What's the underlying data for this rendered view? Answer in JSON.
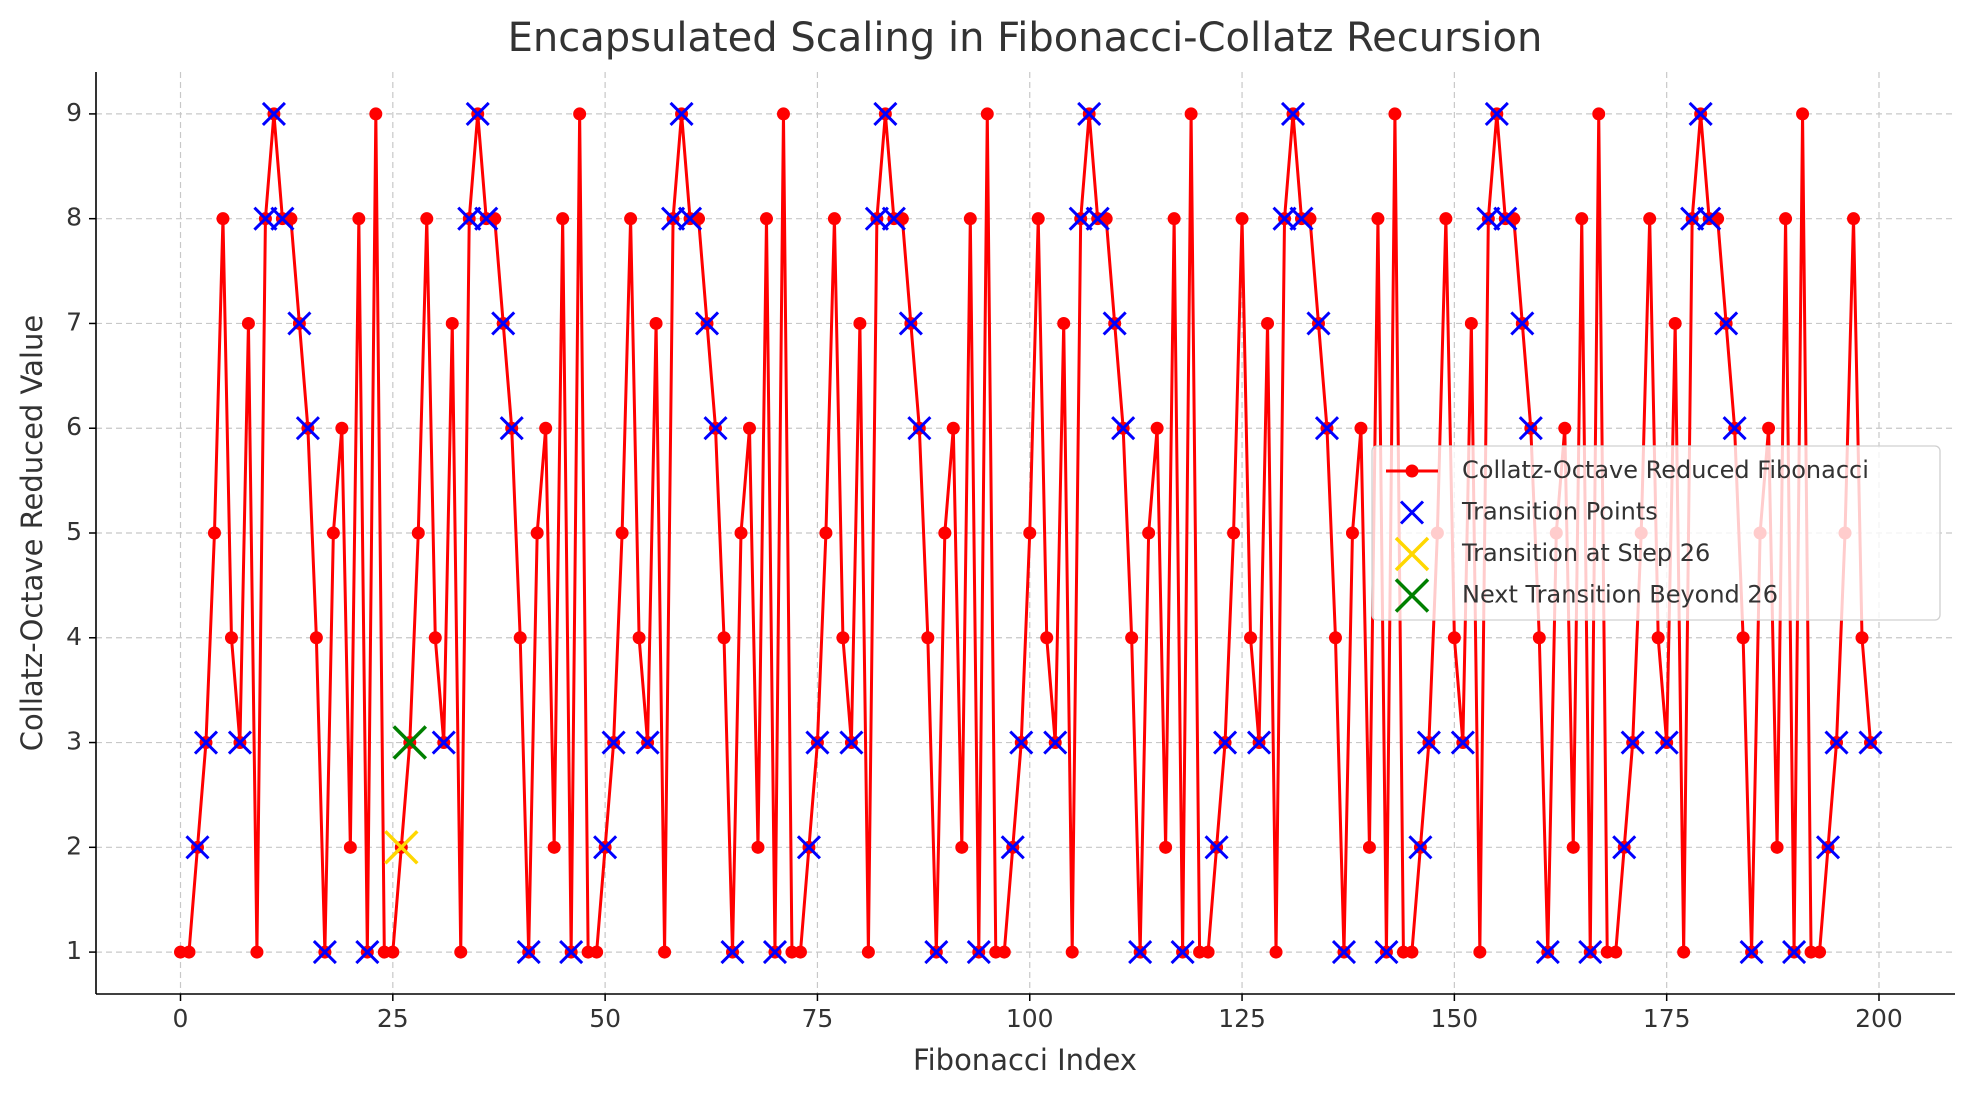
{
  "chart_data": {
    "type": "line",
    "title": "Encapsulated Scaling in Fibonacci-Collatz Recursion",
    "xlabel": "Fibonacci Index",
    "ylabel": "Collatz-Octave Reduced Value",
    "xlim": [
      -9.95,
      208.95
    ],
    "ylim": [
      0.6,
      9.4
    ],
    "xticks": [
      0,
      25,
      50,
      75,
      100,
      125,
      150,
      175,
      200
    ],
    "yticks": [
      1,
      2,
      3,
      4,
      5,
      6,
      7,
      8,
      9
    ],
    "grid": true,
    "legend": "center right",
    "series": [
      {
        "name": "Collatz-Octave Reduced Fibonacci",
        "color": "#ff0000",
        "kind": "line-marker",
        "x": [
          0,
          1,
          2,
          3,
          4,
          5,
          6,
          7,
          8,
          9,
          10,
          11,
          12,
          13,
          14,
          15,
          16,
          17,
          18,
          19,
          20,
          21,
          22,
          23,
          24,
          25,
          26,
          27,
          28,
          29,
          30,
          31,
          32,
          33,
          34,
          35,
          36,
          37,
          38,
          39,
          40,
          41,
          42,
          43,
          44,
          45,
          46,
          47,
          48,
          49,
          50,
          51,
          52,
          53,
          54,
          55,
          56,
          57,
          58,
          59,
          60,
          61,
          62,
          63,
          64,
          65,
          66,
          67,
          68,
          69,
          70,
          71,
          72,
          73,
          74,
          75,
          76,
          77,
          78,
          79,
          80,
          81,
          82,
          83,
          84,
          85,
          86,
          87,
          88,
          89,
          90,
          91,
          92,
          93,
          94,
          95,
          96,
          97,
          98,
          99,
          100,
          101,
          102,
          103,
          104,
          105,
          106,
          107,
          108,
          109,
          110,
          111,
          112,
          113,
          114,
          115,
          116,
          117,
          118,
          119,
          120,
          121,
          122,
          123,
          124,
          125,
          126,
          127,
          128,
          129,
          130,
          131,
          132,
          133,
          134,
          135,
          136,
          137,
          138,
          139,
          140,
          141,
          142,
          143,
          144,
          145,
          146,
          147,
          148,
          149,
          150,
          151,
          152,
          153,
          154,
          155,
          156,
          157,
          158,
          159,
          160,
          161,
          162,
          163,
          164,
          165,
          166,
          167,
          168,
          169,
          170,
          171,
          172,
          173,
          174,
          175,
          176,
          177,
          178,
          179,
          180,
          181,
          182,
          183,
          184,
          185,
          186,
          187,
          188,
          189,
          190,
          191,
          192,
          193,
          194,
          195,
          196,
          197,
          198,
          199
        ],
        "values": [
          1,
          1,
          2,
          3,
          5,
          8,
          4,
          3,
          7,
          1,
          8,
          9,
          8,
          8,
          7,
          6,
          4,
          1,
          5,
          6,
          2,
          8,
          1,
          9,
          1,
          1,
          2,
          3,
          5,
          8,
          4,
          3,
          7,
          1,
          8,
          9,
          8,
          8,
          7,
          6,
          4,
          1,
          5,
          6,
          2,
          8,
          1,
          9,
          1,
          1,
          2,
          3,
          5,
          8,
          4,
          3,
          7,
          1,
          8,
          9,
          8,
          8,
          7,
          6,
          4,
          1,
          5,
          6,
          2,
          8,
          1,
          9,
          1,
          1,
          2,
          3,
          5,
          8,
          4,
          3,
          7,
          1,
          8,
          9,
          8,
          8,
          7,
          6,
          4,
          1,
          5,
          6,
          2,
          8,
          1,
          9,
          1,
          1,
          2,
          3,
          5,
          8,
          4,
          3,
          7,
          1,
          8,
          9,
          8,
          8,
          7,
          6,
          4,
          1,
          5,
          6,
          2,
          8,
          1,
          9,
          1,
          1,
          2,
          3,
          5,
          8,
          4,
          3,
          7,
          1,
          8,
          9,
          8,
          8,
          7,
          6,
          4,
          1,
          5,
          6,
          2,
          8,
          1,
          9,
          1,
          1,
          2,
          3,
          5,
          8,
          4,
          3,
          7,
          1,
          8,
          9,
          8,
          8,
          7,
          6,
          4,
          1,
          5,
          6,
          2,
          8,
          1,
          9,
          1,
          1,
          2,
          3,
          5,
          8,
          4,
          3,
          7,
          1,
          8,
          9,
          8,
          8,
          7,
          6,
          4,
          1,
          5,
          6,
          2,
          8,
          1,
          9,
          1,
          1,
          2,
          3,
          5,
          8,
          4,
          3
        ]
      },
      {
        "name": "Transition Points",
        "color": "#0000ff",
        "kind": "x",
        "x": [
          2,
          3,
          7,
          10,
          11,
          12,
          14,
          15,
          17,
          22,
          26,
          27,
          31,
          34,
          35,
          36,
          38,
          39,
          41,
          46,
          50,
          51,
          55,
          58,
          59,
          60,
          62,
          63,
          65,
          70,
          74,
          75,
          79,
          82,
          83,
          84,
          86,
          87,
          89,
          94,
          98,
          99,
          103,
          106,
          107,
          108,
          110,
          111,
          113,
          118,
          122,
          123,
          127,
          130,
          131,
          132,
          134,
          135,
          137,
          142,
          146,
          147,
          151,
          154,
          155,
          156,
          158,
          159,
          161,
          166,
          170,
          171,
          175,
          178,
          179,
          180,
          182,
          183,
          185,
          190,
          194,
          195,
          199
        ],
        "values": [
          2,
          3,
          3,
          8,
          9,
          8,
          7,
          6,
          1,
          1,
          2,
          3,
          3,
          8,
          9,
          8,
          7,
          6,
          1,
          1,
          2,
          3,
          3,
          8,
          9,
          8,
          7,
          6,
          1,
          1,
          2,
          3,
          3,
          8,
          9,
          8,
          7,
          6,
          1,
          1,
          2,
          3,
          3,
          8,
          9,
          8,
          7,
          6,
          1,
          1,
          2,
          3,
          3,
          8,
          9,
          8,
          7,
          6,
          1,
          1,
          2,
          3,
          3,
          8,
          9,
          8,
          7,
          6,
          1,
          1,
          2,
          3,
          3,
          8,
          9,
          8,
          7,
          6,
          1,
          1,
          2,
          3,
          3
        ]
      },
      {
        "name": "Transition at Step 26",
        "color": "#ffd700",
        "kind": "bigx",
        "x": [
          26
        ],
        "values": [
          2
        ]
      },
      {
        "name": "Next Transition Beyond 26",
        "color": "#008000",
        "kind": "bigx",
        "x": [
          27
        ],
        "values": [
          3
        ]
      }
    ]
  }
}
